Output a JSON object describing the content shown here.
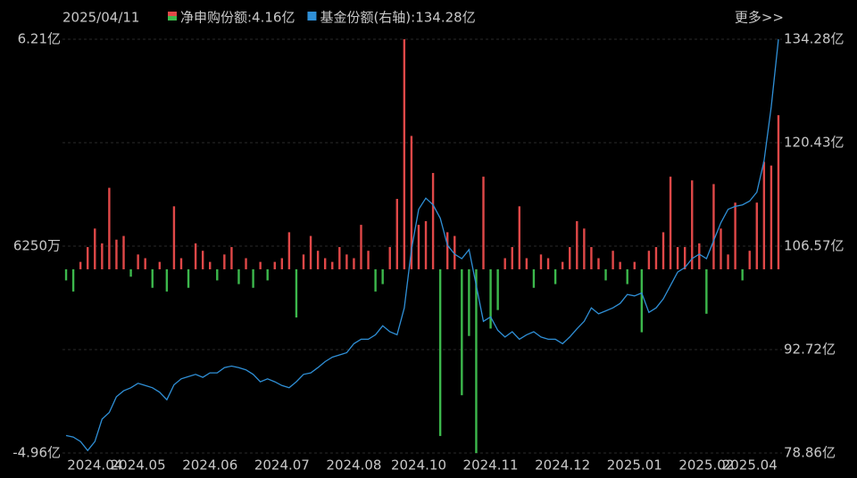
{
  "chart_data": {
    "type": "bar-line",
    "date": "2025/04/11",
    "more_link": "更多>>",
    "categories": [
      null,
      null,
      null,
      null,
      "2024.04",
      null,
      null,
      null,
      null,
      null,
      "2024.05",
      null,
      null,
      null,
      null,
      null,
      null,
      null,
      null,
      null,
      "2024.06",
      null,
      null,
      null,
      null,
      null,
      null,
      null,
      null,
      null,
      "2024.07",
      null,
      null,
      null,
      null,
      null,
      null,
      null,
      null,
      null,
      "2024.08",
      null,
      null,
      null,
      null,
      null,
      null,
      null,
      null,
      "2024.10",
      null,
      null,
      null,
      null,
      null,
      null,
      null,
      null,
      null,
      "2024.11",
      null,
      null,
      null,
      null,
      null,
      null,
      null,
      null,
      null,
      "2024.12",
      null,
      null,
      null,
      null,
      null,
      null,
      null,
      null,
      null,
      "2025.01",
      null,
      null,
      null,
      null,
      null,
      null,
      null,
      null,
      null,
      "2025.02",
      null,
      null,
      null,
      null,
      null,
      "2025.04",
      null,
      null,
      null,
      null
    ],
    "series": [
      {
        "name": "净申购份额:4.16亿",
        "color": "#e04848",
        "negative_color": "#3cb84c",
        "axis": "y",
        "values": [
          -0.3,
          -0.6,
          0.2,
          0.6,
          1.1,
          0.7,
          2.2,
          0.8,
          0.9,
          -0.2,
          0.4,
          0.3,
          -0.5,
          0.2,
          -0.6,
          1.7,
          0.3,
          -0.5,
          0.7,
          0.5,
          0.2,
          -0.3,
          0.4,
          0.6,
          -0.4,
          0.3,
          -0.5,
          0.2,
          -0.3,
          0.2,
          0.3,
          1.0,
          -1.3,
          0.4,
          0.9,
          0.5,
          0.3,
          0.2,
          0.6,
          0.4,
          0.3,
          1.2,
          0.5,
          -0.6,
          -0.4,
          0.6,
          1.9,
          6.21,
          3.6,
          1.2,
          1.3,
          2.6,
          -4.5,
          1.0,
          0.9,
          -3.4,
          -1.8,
          -4.96,
          2.5,
          -1.6,
          -1.1,
          0.3,
          0.6,
          1.7,
          0.3,
          -0.5,
          0.4,
          0.3,
          -0.4,
          0.2,
          0.6,
          1.3,
          1.1,
          0.6,
          0.3,
          -0.3,
          0.5,
          0.2,
          -0.4,
          0.2,
          -1.7,
          0.5,
          0.6,
          1.0,
          2.5,
          0.6,
          0.6,
          2.4,
          0.7,
          -1.2,
          2.3,
          1.1,
          0.4,
          1.8,
          -0.3,
          0.5,
          1.8,
          2.9,
          2.8,
          4.16
        ]
      },
      {
        "name": "基金份额(右轴):134.28亿",
        "color": "#2f8fd6",
        "axis": "y2",
        "values": [
          81.2,
          81,
          80.4,
          79.2,
          80.4,
          83.4,
          84.3,
          86.4,
          87.2,
          87.6,
          88.2,
          87.9,
          87.6,
          87,
          86,
          88,
          88.8,
          89.1,
          89.4,
          89,
          89.6,
          89.6,
          90.3,
          90.5,
          90.3,
          90,
          89.4,
          88.4,
          88.8,
          88.4,
          87.9,
          87.6,
          88.4,
          89.4,
          89.6,
          90.3,
          91.1,
          91.7,
          92,
          92.3,
          93.5,
          94.1,
          94.1,
          94.7,
          95.9,
          95.1,
          94.7,
          98.3,
          106.1,
          111.5,
          113,
          112.1,
          110.3,
          106.7,
          105.5,
          104.9,
          106.1,
          101.3,
          96.5,
          97.1,
          95.3,
          94.4,
          95.1,
          94.1,
          94.7,
          95.1,
          94.4,
          94.1,
          94.1,
          93.5,
          94.4,
          95.5,
          96.5,
          98.3,
          97.5,
          97.9,
          98.3,
          98.9,
          100.1,
          99.9,
          100.3,
          97.7,
          98.3,
          99.5,
          101.3,
          103.1,
          103.7,
          104.9,
          105.5,
          104.9,
          107.3,
          109.7,
          111.5,
          111.9,
          112.1,
          112.6,
          113.8,
          118,
          125.2,
          134.28
        ]
      }
    ],
    "ylim": [
      -4.96,
      6.21
    ],
    "yticks": [
      {
        "value": 6.21,
        "label": "6.21亿"
      },
      {
        "value": 0.625,
        "label": "6250万"
      },
      {
        "value": -4.96,
        "label": "-4.96亿"
      }
    ],
    "y2lim": [
      78.86,
      134.28
    ],
    "y2ticks": [
      {
        "value": 134.28,
        "label": "134.28亿"
      },
      {
        "value": 120.43,
        "label": "120.43亿"
      },
      {
        "value": 106.57,
        "label": "106.57亿"
      },
      {
        "value": 92.72,
        "label": "92.72亿"
      },
      {
        "value": 78.86,
        "label": "78.86亿"
      }
    ],
    "grid": true
  }
}
